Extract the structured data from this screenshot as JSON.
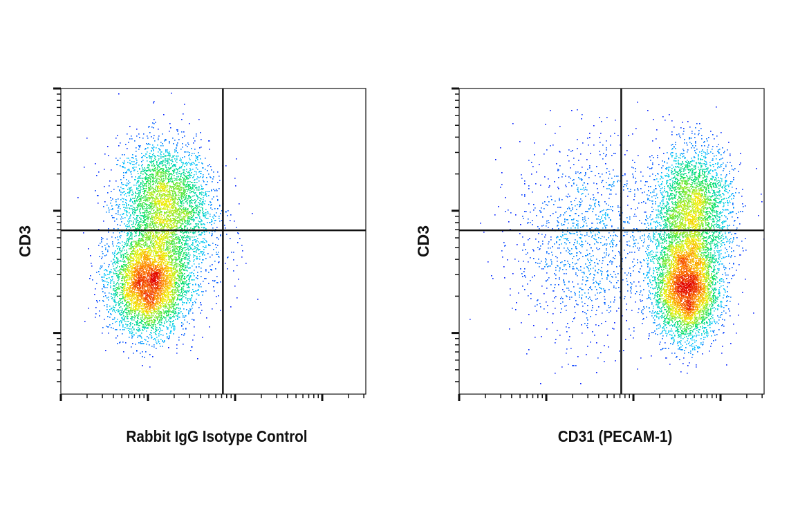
{
  "chart_data": [
    {
      "type": "scatter",
      "subtype": "flow-cytometry-density-plot",
      "xlabel": "Rabbit IgG Isotype Control",
      "ylabel": "CD3",
      "x_scale": "log",
      "y_scale": "log",
      "xlim_log10": [
        1,
        4.5
      ],
      "ylim_log10": [
        1.5,
        4
      ],
      "tick_labels_shown": false,
      "quadrant_gate_log10": {
        "x": 2.86,
        "y": 2.84
      },
      "populations": [
        {
          "center_log10": [
            2.17,
            3.07
          ],
          "spread_log10": [
            0.26,
            0.25
          ],
          "events": 3000
        },
        {
          "center_log10": [
            2.0,
            2.4
          ],
          "spread_log10": [
            0.22,
            0.2
          ],
          "events": 4500
        },
        {
          "center_log10": [
            2.3,
            2.8
          ],
          "spread_log10": [
            0.3,
            0.3
          ],
          "events": 900
        }
      ],
      "colormap": [
        "#0000ff",
        "#00c8ff",
        "#00e060",
        "#f0f000",
        "#ff8000",
        "#e00000"
      ]
    },
    {
      "type": "scatter",
      "subtype": "flow-cytometry-density-plot",
      "xlabel": "CD31 (PECAM-1)",
      "ylabel": "CD3",
      "x_scale": "log",
      "y_scale": "log",
      "xlim_log10": [
        1,
        4.5
      ],
      "ylim_log10": [
        1.5,
        4
      ],
      "tick_labels_shown": false,
      "quadrant_gate_log10": {
        "x": 2.86,
        "y": 2.84
      },
      "populations": [
        {
          "center_log10": [
            3.68,
            3.06
          ],
          "spread_log10": [
            0.22,
            0.24
          ],
          "events": 2600
        },
        {
          "center_log10": [
            3.6,
            2.35
          ],
          "spread_log10": [
            0.18,
            0.2
          ],
          "events": 4000
        },
        {
          "center_log10": [
            3.6,
            2.7
          ],
          "spread_log10": [
            0.25,
            0.22
          ],
          "events": 1200
        },
        {
          "center_log10": [
            2.45,
            2.75
          ],
          "spread_log10": [
            0.4,
            0.42
          ],
          "events": 1300
        }
      ],
      "colormap": [
        "#0000ff",
        "#00c8ff",
        "#00e060",
        "#f0f000",
        "#ff8000",
        "#e00000"
      ]
    }
  ]
}
